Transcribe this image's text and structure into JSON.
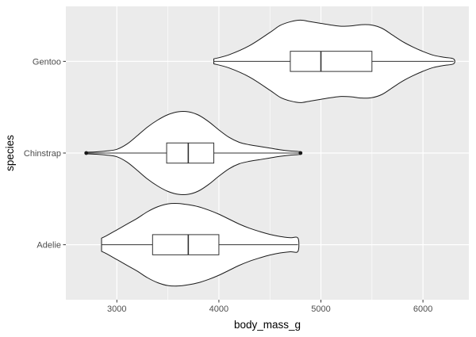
{
  "chart_data": {
    "type": "violin",
    "xlabel": "body_mass_g",
    "ylabel": "species",
    "xlim": [
      2500,
      6450
    ],
    "x_ticks": [
      3000,
      4000,
      5000,
      6000
    ],
    "x_tick_labels": [
      "3000",
      "4000",
      "5000",
      "6000"
    ],
    "categories": [
      "Adelie",
      "Chinstrap",
      "Gentoo"
    ],
    "grid": true,
    "legend": "none",
    "colors": {
      "panel_bg": "#ebebeb",
      "grid_major": "#ffffff",
      "violin_fill": "#ffffff",
      "violin_stroke": "#1a1a1a",
      "box_stroke": "#333333",
      "outlier": "#1a1a1a"
    },
    "series": [
      {
        "category": "Adelie",
        "min": 2850,
        "q1": 3350,
        "median": 3700,
        "q3": 4000,
        "max": 4775,
        "whisker_low": 2850,
        "whisker_high": 4775,
        "outliers": [],
        "density": [
          [
            2850,
            0.16
          ],
          [
            2900,
            0.22
          ],
          [
            3000,
            0.36
          ],
          [
            3100,
            0.5
          ],
          [
            3200,
            0.64
          ],
          [
            3300,
            0.8
          ],
          [
            3400,
            0.92
          ],
          [
            3500,
            0.99
          ],
          [
            3600,
            1.0
          ],
          [
            3700,
            0.97
          ],
          [
            3800,
            0.92
          ],
          [
            3900,
            0.84
          ],
          [
            4000,
            0.74
          ],
          [
            4100,
            0.62
          ],
          [
            4200,
            0.5
          ],
          [
            4300,
            0.4
          ],
          [
            4400,
            0.32
          ],
          [
            4500,
            0.25
          ],
          [
            4600,
            0.2
          ],
          [
            4700,
            0.17
          ],
          [
            4775,
            0.16
          ]
        ]
      },
      {
        "category": "Chinstrap",
        "min": 2700,
        "q1": 3488,
        "median": 3700,
        "q3": 3950,
        "max": 4800,
        "whisker_low": 2700,
        "whisker_high": 4800,
        "outliers": [
          2700,
          4800
        ],
        "density": [
          [
            2700,
            0.02
          ],
          [
            2800,
            0.03
          ],
          [
            2900,
            0.05
          ],
          [
            3000,
            0.09
          ],
          [
            3100,
            0.22
          ],
          [
            3200,
            0.42
          ],
          [
            3300,
            0.63
          ],
          [
            3400,
            0.8
          ],
          [
            3500,
            0.93
          ],
          [
            3600,
            1.0
          ],
          [
            3700,
            1.0
          ],
          [
            3800,
            0.92
          ],
          [
            3900,
            0.76
          ],
          [
            4000,
            0.56
          ],
          [
            4100,
            0.38
          ],
          [
            4200,
            0.26
          ],
          [
            4300,
            0.2
          ],
          [
            4400,
            0.16
          ],
          [
            4500,
            0.12
          ],
          [
            4600,
            0.08
          ],
          [
            4700,
            0.05
          ],
          [
            4800,
            0.03
          ]
        ]
      },
      {
        "category": "Gentoo",
        "min": 3950,
        "q1": 4700,
        "median": 5000,
        "q3": 5500,
        "max": 6300,
        "whisker_low": 3950,
        "whisker_high": 6300,
        "outliers": [],
        "density": [
          [
            3950,
            0.06
          ],
          [
            4100,
            0.16
          ],
          [
            4300,
            0.38
          ],
          [
            4500,
            0.7
          ],
          [
            4600,
            0.87
          ],
          [
            4700,
            0.96
          ],
          [
            4800,
            1.0
          ],
          [
            4900,
            0.96
          ],
          [
            5000,
            0.92
          ],
          [
            5100,
            0.88
          ],
          [
            5200,
            0.85
          ],
          [
            5300,
            0.86
          ],
          [
            5400,
            0.89
          ],
          [
            5500,
            0.88
          ],
          [
            5600,
            0.8
          ],
          [
            5700,
            0.64
          ],
          [
            5800,
            0.48
          ],
          [
            5900,
            0.35
          ],
          [
            6000,
            0.24
          ],
          [
            6100,
            0.15
          ],
          [
            6200,
            0.1
          ],
          [
            6300,
            0.06
          ]
        ]
      }
    ]
  }
}
